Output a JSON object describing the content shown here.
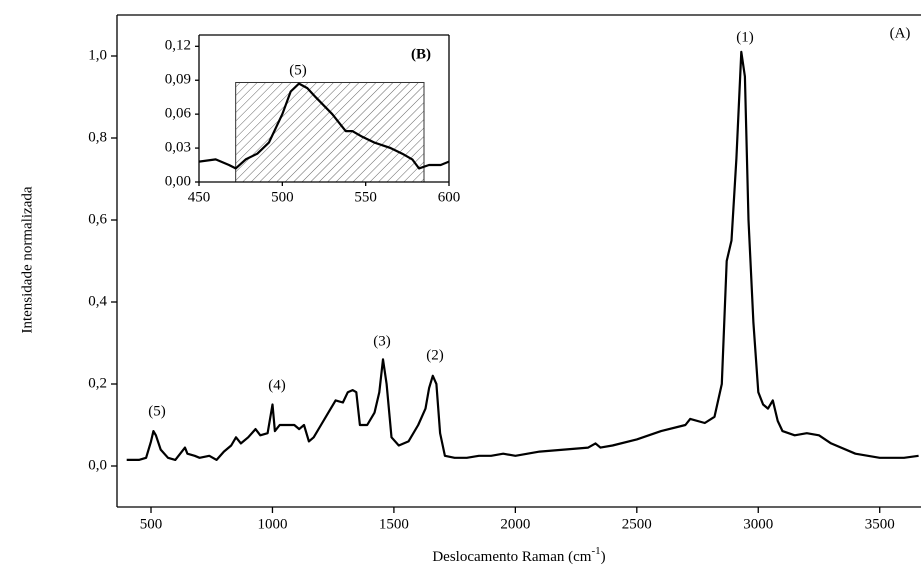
{
  "chart_data": [
    {
      "type": "line",
      "y_label": "Intensidade normalizada",
      "x_label": [
        "Deslocamento Raman (cm",
        "-1",
        ")"
      ],
      "xlim": [
        360,
        3670
      ],
      "ylim": [
        -0.1,
        1.1
      ],
      "xticks": [
        500,
        1000,
        1500,
        2000,
        2500,
        3000,
        3500
      ],
      "yticks": [
        {
          "value": 0,
          "label": "0,0"
        },
        {
          "value": 0.2,
          "label": "0,2"
        },
        {
          "value": 0.4,
          "label": "0,4"
        },
        {
          "value": 0.6,
          "label": "0,6"
        },
        {
          "value": 0.8,
          "label": "0,8"
        },
        {
          "value": 1.0,
          "label": "1,0"
        }
      ],
      "annotations": [
        "(1)",
        "(2)",
        "(3)",
        "(4)",
        "(5)",
        "(A)"
      ],
      "series": [
        {
          "color": "#000000",
          "x": [
            400,
            450,
            480,
            500,
            510,
            520,
            540,
            570,
            600,
            620,
            640,
            650,
            680,
            700,
            740,
            770,
            800,
            830,
            850,
            870,
            900,
            930,
            950,
            980,
            1000,
            1010,
            1030,
            1060,
            1090,
            1110,
            1130,
            1150,
            1170,
            1200,
            1230,
            1260,
            1290,
            1310,
            1330,
            1345,
            1360,
            1390,
            1420,
            1440,
            1455,
            1470,
            1490,
            1520,
            1560,
            1600,
            1630,
            1645,
            1660,
            1675,
            1690,
            1710,
            1750,
            1800,
            1850,
            1900,
            1950,
            2000,
            2100,
            2200,
            2300,
            2330,
            2350,
            2400,
            2500,
            2600,
            2700,
            2720,
            2780,
            2820,
            2850,
            2870,
            2890,
            2910,
            2930,
            2945,
            2960,
            2980,
            3000,
            3020,
            3040,
            3060,
            3080,
            3100,
            3150,
            3200,
            3250,
            3300,
            3400,
            3500,
            3600,
            3660
          ],
          "values": [
            0.015,
            0.015,
            0.02,
            0.06,
            0.085,
            0.075,
            0.04,
            0.02,
            0.015,
            0.03,
            0.045,
            0.03,
            0.025,
            0.02,
            0.025,
            0.015,
            0.035,
            0.05,
            0.07,
            0.055,
            0.07,
            0.09,
            0.075,
            0.08,
            0.15,
            0.085,
            0.1,
            0.1,
            0.1,
            0.09,
            0.1,
            0.06,
            0.07,
            0.1,
            0.13,
            0.16,
            0.155,
            0.18,
            0.185,
            0.18,
            0.1,
            0.1,
            0.13,
            0.18,
            0.26,
            0.2,
            0.07,
            0.05,
            0.06,
            0.1,
            0.14,
            0.19,
            0.22,
            0.2,
            0.08,
            0.025,
            0.02,
            0.02,
            0.025,
            0.025,
            0.03,
            0.025,
            0.035,
            0.04,
            0.045,
            0.055,
            0.045,
            0.05,
            0.065,
            0.085,
            0.1,
            0.115,
            0.105,
            0.12,
            0.2,
            0.5,
            0.55,
            0.75,
            1.01,
            0.95,
            0.6,
            0.35,
            0.18,
            0.15,
            0.14,
            0.16,
            0.11,
            0.085,
            0.075,
            0.08,
            0.075,
            0.055,
            0.03,
            0.02,
            0.02,
            0.025
          ]
        }
      ]
    },
    {
      "type": "line",
      "xlim": [
        450,
        600
      ],
      "ylim": [
        0,
        0.13
      ],
      "xticks": [
        450,
        500,
        550,
        600
      ],
      "yticks": [
        {
          "value": 0,
          "label": "0,00"
        },
        {
          "value": 0.03,
          "label": "0,03"
        },
        {
          "value": 0.06,
          "label": "0,06"
        },
        {
          "value": 0.09,
          "label": "0,09"
        },
        {
          "value": 0.12,
          "label": "0,12"
        }
      ],
      "annotations": [
        "(5)",
        "(B)"
      ],
      "shaded_region": {
        "x": [
          472,
          585
        ],
        "y": [
          0,
          0.088
        ]
      },
      "series": [
        {
          "color": "#000000",
          "x": [
            450,
            460,
            468,
            472,
            478,
            485,
            492,
            500,
            505,
            510,
            515,
            520,
            530,
            538,
            542,
            548,
            555,
            565,
            572,
            578,
            582,
            588,
            595,
            600
          ],
          "values": [
            0.018,
            0.02,
            0.015,
            0.012,
            0.02,
            0.025,
            0.035,
            0.06,
            0.08,
            0.087,
            0.083,
            0.075,
            0.06,
            0.045,
            0.045,
            0.04,
            0.035,
            0.03,
            0.025,
            0.02,
            0.012,
            0.015,
            0.015,
            0.018
          ]
        }
      ]
    }
  ]
}
